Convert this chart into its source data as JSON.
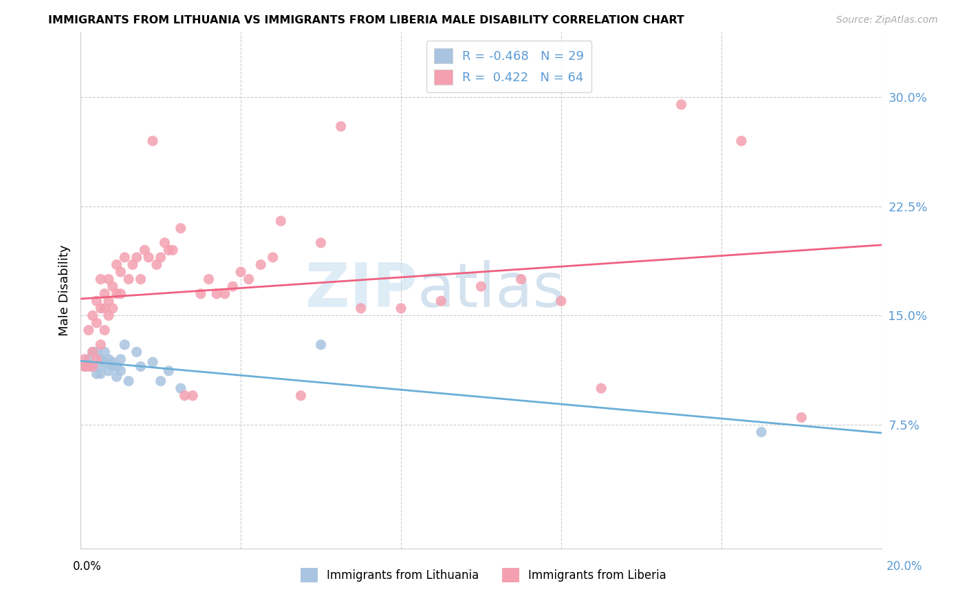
{
  "title": "IMMIGRANTS FROM LITHUANIA VS IMMIGRANTS FROM LIBERIA MALE DISABILITY CORRELATION CHART",
  "source": "Source: ZipAtlas.com",
  "ylabel": "Male Disability",
  "right_yticks": [
    0.075,
    0.15,
    0.225,
    0.3
  ],
  "right_yticklabels": [
    "7.5%",
    "15.0%",
    "22.5%",
    "30.0%"
  ],
  "xlim": [
    0.0,
    0.2
  ],
  "ylim": [
    -0.01,
    0.345
  ],
  "lithuania_color": "#a8c4e0",
  "liberia_color": "#f4a0b0",
  "lithuania_line_color": "#6aaed6",
  "liberia_line_color": "#f06080",
  "legend_R_lithuania": "-0.468",
  "legend_N_lithuania": "29",
  "legend_R_liberia": "0.422",
  "legend_N_liberia": "64",
  "watermark_zip": "ZIP",
  "watermark_atlas": "atlas",
  "lithuania_x": [
    0.001,
    0.002,
    0.003,
    0.003,
    0.004,
    0.004,
    0.005,
    0.005,
    0.005,
    0.006,
    0.006,
    0.007,
    0.007,
    0.008,
    0.008,
    0.009,
    0.009,
    0.01,
    0.01,
    0.011,
    0.012,
    0.014,
    0.015,
    0.018,
    0.02,
    0.022,
    0.025,
    0.06,
    0.17
  ],
  "lithuania_y": [
    0.115,
    0.12,
    0.125,
    0.115,
    0.11,
    0.125,
    0.12,
    0.115,
    0.11,
    0.125,
    0.118,
    0.12,
    0.112,
    0.118,
    0.115,
    0.115,
    0.108,
    0.112,
    0.12,
    0.13,
    0.105,
    0.125,
    0.115,
    0.118,
    0.105,
    0.112,
    0.1,
    0.13,
    0.07
  ],
  "liberia_x": [
    0.001,
    0.001,
    0.002,
    0.002,
    0.003,
    0.003,
    0.003,
    0.004,
    0.004,
    0.004,
    0.005,
    0.005,
    0.005,
    0.006,
    0.006,
    0.006,
    0.007,
    0.007,
    0.007,
    0.008,
    0.008,
    0.009,
    0.009,
    0.01,
    0.01,
    0.011,
    0.012,
    0.013,
    0.014,
    0.015,
    0.016,
    0.017,
    0.018,
    0.019,
    0.02,
    0.021,
    0.022,
    0.023,
    0.025,
    0.026,
    0.028,
    0.03,
    0.032,
    0.034,
    0.036,
    0.038,
    0.04,
    0.042,
    0.045,
    0.048,
    0.05,
    0.055,
    0.06,
    0.065,
    0.07,
    0.08,
    0.09,
    0.1,
    0.11,
    0.12,
    0.13,
    0.15,
    0.165,
    0.18
  ],
  "liberia_y": [
    0.12,
    0.115,
    0.14,
    0.115,
    0.15,
    0.125,
    0.115,
    0.16,
    0.145,
    0.12,
    0.175,
    0.155,
    0.13,
    0.165,
    0.155,
    0.14,
    0.175,
    0.16,
    0.15,
    0.17,
    0.155,
    0.185,
    0.165,
    0.18,
    0.165,
    0.19,
    0.175,
    0.185,
    0.19,
    0.175,
    0.195,
    0.19,
    0.27,
    0.185,
    0.19,
    0.2,
    0.195,
    0.195,
    0.21,
    0.095,
    0.095,
    0.165,
    0.175,
    0.165,
    0.165,
    0.17,
    0.18,
    0.175,
    0.185,
    0.19,
    0.215,
    0.095,
    0.2,
    0.28,
    0.155,
    0.155,
    0.16,
    0.17,
    0.175,
    0.16,
    0.1,
    0.295,
    0.27,
    0.08
  ]
}
